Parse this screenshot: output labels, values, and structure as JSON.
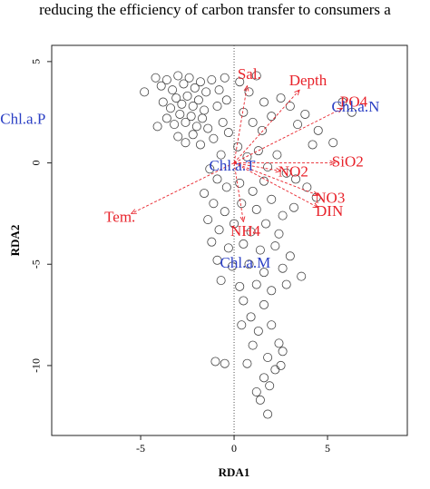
{
  "caption": "reducing the efficiency of carbon transfer to consumers a",
  "chart_data": {
    "type": "scatter",
    "xlabel": "RDA1",
    "ylabel": "RDA2",
    "xlim": [
      -9.76,
      9.27
    ],
    "ylim": [
      -13.45,
      5.8
    ],
    "xticks": [
      -5,
      0,
      5
    ],
    "yticks": [
      5,
      0,
      -5,
      -10
    ],
    "x": [
      -4.8,
      -4.2,
      -3.9,
      -3.6,
      -3.3,
      -3.0,
      -2.7,
      -2.4,
      -2.1,
      -1.8,
      -1.5,
      -1.2,
      -3.8,
      -3.4,
      -3.1,
      -2.8,
      -2.5,
      -2.2,
      -1.9,
      -1.6,
      -3.6,
      -3.2,
      -2.9,
      -2.6,
      -2.3,
      -2.0,
      -1.7,
      -1.4,
      -4.1,
      -3.0,
      -2.6,
      -2.2,
      -1.8,
      -1.1,
      -0.8,
      -0.5,
      -0.9,
      -0.4,
      -0.6,
      -0.3,
      0.3,
      0.8,
      1.2,
      1.6,
      0.5,
      1.0,
      1.5,
      2.0,
      2.5,
      3.0,
      3.4,
      3.8,
      4.5,
      5.3,
      5.8,
      6.3,
      4.2,
      0.2,
      0.7,
      1.3,
      1.8,
      2.3,
      2.8,
      3.3,
      3.9,
      4.4,
      -0.7,
      -1.3,
      -0.9,
      -0.4,
      0.3,
      1.0,
      1.6,
      -1.6,
      -1.1,
      -0.5,
      0.4,
      1.2,
      2.0,
      2.6,
      3.2,
      -1.4,
      -0.8,
      0.0,
      0.9,
      1.7,
      2.4,
      -1.2,
      -0.3,
      0.5,
      1.4,
      2.2,
      3.0,
      -0.9,
      -0.1,
      0.8,
      1.6,
      2.6,
      3.6,
      -0.7,
      0.3,
      1.2,
      2.0,
      2.8,
      0.5,
      1.6,
      0.9,
      0.4,
      1.3,
      2.0,
      1.0,
      2.4,
      2.6,
      1.8,
      0.7,
      2.2,
      1.6,
      2.5,
      1.2,
      1.9,
      1.4,
      1.8,
      -1.0,
      -0.5
    ],
    "y": [
      3.5,
      4.2,
      3.8,
      4.1,
      3.6,
      4.3,
      3.9,
      4.2,
      3.7,
      4.0,
      3.5,
      4.1,
      3.0,
      2.7,
      3.2,
      2.9,
      3.3,
      2.8,
      3.1,
      2.6,
      2.2,
      1.9,
      2.4,
      2.0,
      2.3,
      1.8,
      2.2,
      1.7,
      1.8,
      1.3,
      1.0,
      1.4,
      0.9,
      1.2,
      3.6,
      4.2,
      2.8,
      3.1,
      2.0,
      1.5,
      4.0,
      3.5,
      4.3,
      3.0,
      2.5,
      2.0,
      1.6,
      2.3,
      3.2,
      2.8,
      1.9,
      2.4,
      1.6,
      1.0,
      3.0,
      2.5,
      0.9,
      0.8,
      0.3,
      0.6,
      -0.2,
      0.4,
      -0.5,
      -0.8,
      -1.2,
      -1.7,
      0.4,
      -0.3,
      -0.8,
      -1.2,
      -1.0,
      -1.4,
      -0.9,
      -1.5,
      -2.0,
      -2.4,
      -2.0,
      -2.3,
      -1.8,
      -2.6,
      -2.2,
      -2.8,
      -3.3,
      -3.0,
      -3.4,
      -3.0,
      -3.5,
      -3.9,
      -4.2,
      -4.0,
      -4.3,
      -4.1,
      -4.6,
      -4.8,
      -5.1,
      -5.0,
      -5.4,
      -5.2,
      -5.6,
      -5.8,
      -6.1,
      -6.0,
      -6.3,
      -6.0,
      -6.8,
      -7.0,
      -7.6,
      -8.0,
      -8.3,
      -8.0,
      -9.0,
      -8.9,
      -9.3,
      -9.6,
      -9.9,
      -10.2,
      -10.6,
      -10.0,
      -11.3,
      -11.0,
      -11.7,
      -12.4,
      -9.8,
      -9.9
    ],
    "vectors": [
      {
        "name": "Sal.",
        "x": 0.7,
        "y": 3.8
      },
      {
        "name": "Depth",
        "x": 3.5,
        "y": 3.6
      },
      {
        "name": "PO4",
        "x": 5.8,
        "y": 2.7
      },
      {
        "name": "SiO2",
        "x": 5.4,
        "y": 0
      },
      {
        "name": "NO2",
        "x": 2.5,
        "y": -0.4
      },
      {
        "name": "NO3",
        "x": 4.5,
        "y": -1.6
      },
      {
        "name": "DIN",
        "x": 4.5,
        "y": -2.2
      },
      {
        "name": "NH4",
        "x": 0.5,
        "y": -2.9
      },
      {
        "name": "Tem.",
        "x": -5.5,
        "y": -2.5
      }
    ],
    "species": [
      {
        "name": "Chl.a.P",
        "x": -11.3,
        "y": 2.1
      },
      {
        "name": "Chl.a.N",
        "x": 6.5,
        "y": 2.7
      },
      {
        "name": "Chl.a.T",
        "x": -0.1,
        "y": -0.2
      },
      {
        "name": "Chl.a.M",
        "x": 0.6,
        "y": -5.0
      }
    ]
  }
}
